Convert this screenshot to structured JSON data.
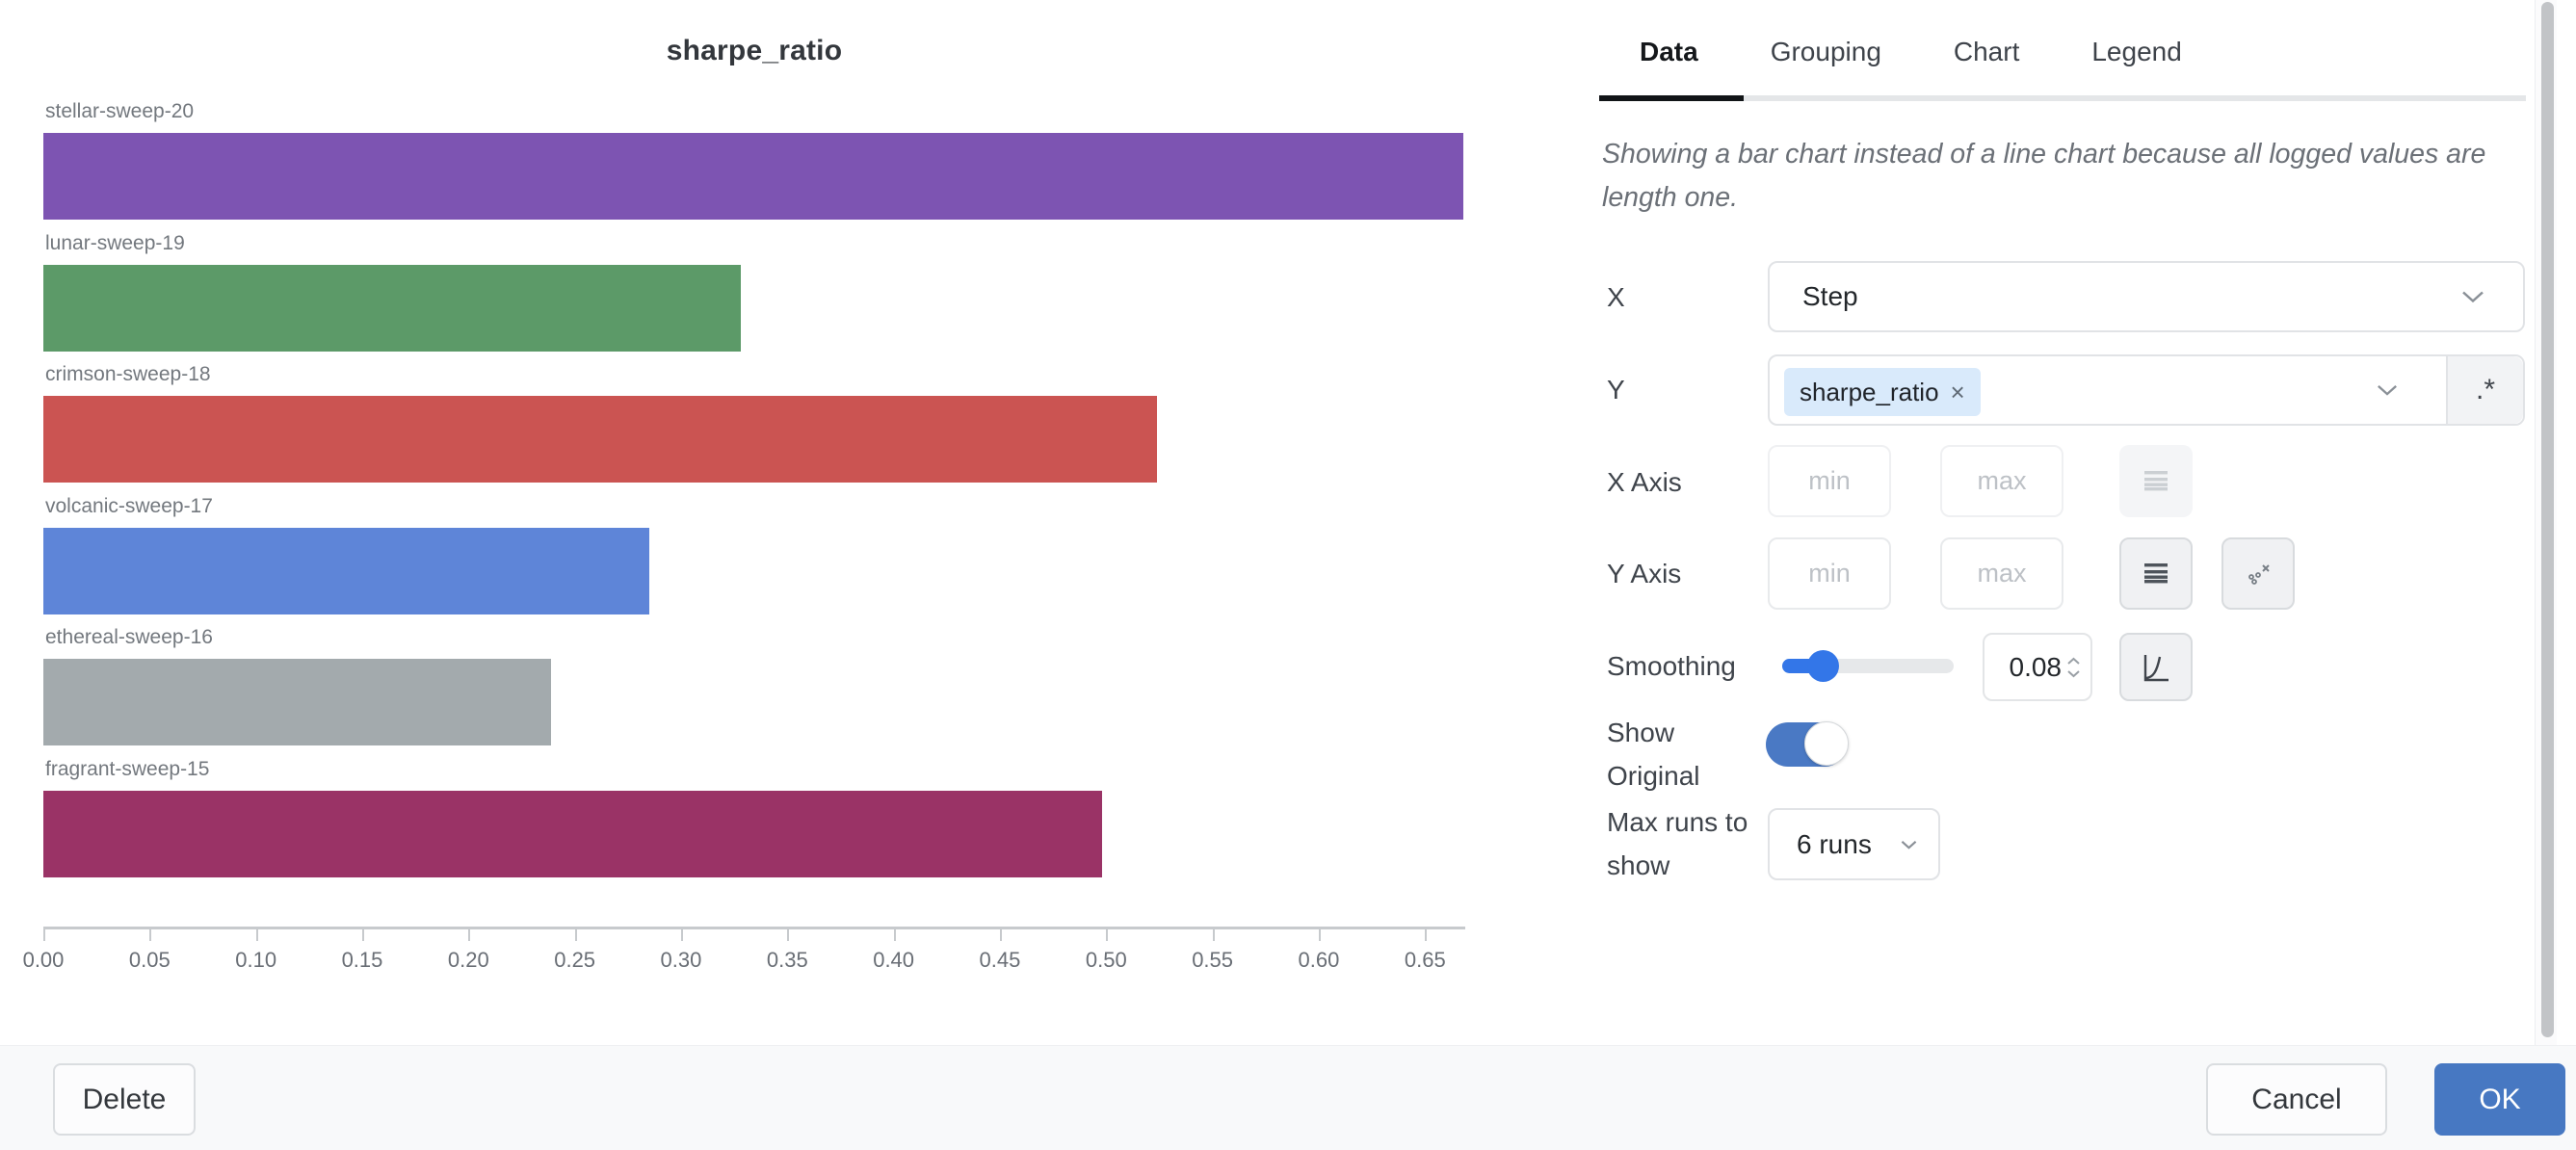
{
  "chart_data": {
    "type": "bar",
    "orientation": "horizontal",
    "title": "sharpe_ratio",
    "categories": [
      "stellar-sweep-20",
      "lunar-sweep-19",
      "crimson-sweep-18",
      "volcanic-sweep-17",
      "ethereal-sweep-16",
      "fragrant-sweep-15"
    ],
    "values": [
      0.668,
      0.328,
      0.524,
      0.285,
      0.239,
      0.498
    ],
    "colors": [
      "#7D54B2",
      "#5C9A68",
      "#CB5452",
      "#5E85D8",
      "#A3AAAD",
      "#9A3366"
    ],
    "xlim": [
      0,
      0.668
    ],
    "x_tick_values": [
      0,
      0.05,
      0.1,
      0.15,
      0.2,
      0.25,
      0.3,
      0.35,
      0.4,
      0.45,
      0.5,
      0.55,
      0.6,
      0.65
    ],
    "x_tick_labels": [
      "0.00",
      "0.05",
      "0.10",
      "0.15",
      "0.20",
      "0.25",
      "0.30",
      "0.35",
      "0.40",
      "0.45",
      "0.50",
      "0.55",
      "0.60",
      "0.65"
    ],
    "grid": false,
    "legend_position": "none"
  },
  "panel": {
    "tabs": [
      {
        "label": "Data",
        "active": true
      },
      {
        "label": "Grouping",
        "active": false
      },
      {
        "label": "Chart",
        "active": false
      },
      {
        "label": "Legend",
        "active": false
      }
    ],
    "note": "Showing a bar chart instead of a line chart because all logged values are length one.",
    "fields": {
      "x": {
        "label": "X",
        "value": "Step"
      },
      "y": {
        "label": "Y",
        "chip": "sharpe_ratio",
        "chip_remove": "×",
        "regex_button": ".*"
      },
      "x_axis": {
        "label": "X Axis",
        "min_placeholder": "min",
        "max_placeholder": "max"
      },
      "y_axis": {
        "label": "Y Axis",
        "min_placeholder": "min",
        "max_placeholder": "max"
      },
      "smoothing": {
        "label": "Smoothing",
        "value": "0.08"
      },
      "show_original": {
        "label": "Show Original",
        "on": true
      },
      "max_runs": {
        "label": "Max runs to show",
        "value": "6 runs"
      }
    }
  },
  "footer": {
    "delete": "Delete",
    "cancel": "Cancel",
    "ok": "OK"
  },
  "colors": {
    "accent_blue": "#4778C2",
    "slider_blue": "#3376E8",
    "chip_bg": "#D9EAFB",
    "tab_active_underline": "#111417",
    "axis": "#C7CACD"
  }
}
